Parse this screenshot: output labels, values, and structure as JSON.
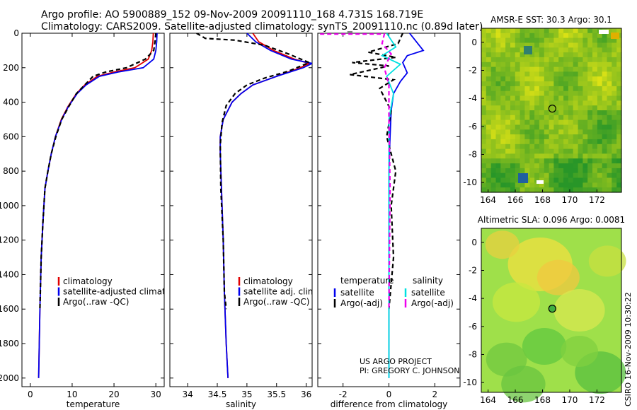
{
  "header": {
    "line1": "Argo profile: AO 5900889_152 09-Nov-2009 20091110_168 4.731S 168.719E",
    "line2": "Climatology: CARS2009. Satellite-adjusted climatology: synTS_20091110.nc (0.89d later)"
  },
  "credit": {
    "line1": "US ARGO PROJECT",
    "line2": "PI: GREGORY C. JOHNSON"
  },
  "stamp": "CSIRO 16-Nov-2009 10:30:22",
  "colors": {
    "climatology": "#e00000",
    "satellite": "#0000ee",
    "argo": "#000000",
    "salinity_sat": "#00e0e0",
    "salinity_argo": "#ee00ee"
  },
  "chart_data": [
    {
      "id": "temperature",
      "type": "line",
      "xlabel": "temperature",
      "ylabel": "",
      "xlim": [
        -2,
        32
      ],
      "ylim": [
        2050,
        0
      ],
      "xticks": [
        "0",
        "10",
        "20",
        "30"
      ],
      "yticks": [
        "0",
        "200",
        "400",
        "600",
        "800",
        "1000",
        "1200",
        "1400",
        "1600",
        "1800",
        "2000"
      ],
      "legend": [
        "climatology",
        "satellite-adjusted climatology",
        "Argo(..raw -QC)"
      ],
      "series": [
        {
          "name": "climatology",
          "color": "#e00000",
          "dash": "",
          "x": [
            29.4,
            29.3,
            29.0,
            28.2,
            25.0,
            20.0,
            16.0,
            13.0,
            11.0,
            9.0,
            7.4,
            6.0,
            5.0,
            4.2,
            3.5,
            3.0,
            2.6,
            2.3,
            2.0
          ],
          "y": [
            0,
            50,
            100,
            150,
            200,
            225,
            250,
            300,
            350,
            425,
            500,
            600,
            700,
            800,
            900,
            1100,
            1300,
            1600,
            2000
          ]
        },
        {
          "name": "satellite-adjusted climatology",
          "color": "#0000ee",
          "dash": "",
          "x": [
            30.3,
            30.2,
            30.0,
            29.5,
            27.0,
            21.0,
            16.5,
            13.3,
            11.2,
            9.1,
            7.5,
            6.0,
            5.0,
            4.2,
            3.5,
            3.0,
            2.6,
            2.3,
            2.0
          ],
          "y": [
            0,
            50,
            100,
            150,
            200,
            225,
            250,
            300,
            350,
            425,
            500,
            600,
            700,
            800,
            900,
            1100,
            1300,
            1600,
            2000
          ]
        },
        {
          "name": "Argo(..raw -QC)",
          "color": "#000000",
          "dash": "6,4",
          "x": [
            30.0,
            29.8,
            29.5,
            27.5,
            23.0,
            18.0,
            15.0,
            13.0,
            11.0,
            9.2,
            7.5,
            6.1,
            5.0,
            4.2,
            3.5,
            3.0,
            2.6,
            2.3
          ],
          "y": [
            0,
            50,
            100,
            150,
            200,
            225,
            250,
            300,
            350,
            425,
            500,
            600,
            700,
            800,
            900,
            1100,
            1300,
            1600
          ]
        }
      ]
    },
    {
      "id": "salinity",
      "type": "line",
      "xlabel": "salinity",
      "xlim": [
        33.7,
        36.1
      ],
      "ylim": [
        2050,
        0
      ],
      "xticks": [
        "34",
        "34.5",
        "35",
        "35.5",
        "36"
      ],
      "legend": [
        "climatology",
        "satellite adj. clim.",
        "Argo(..raw -QC)"
      ],
      "series": [
        {
          "name": "climatology",
          "color": "#e00000",
          "dash": "",
          "x": [
            35.1,
            35.2,
            35.45,
            35.8,
            36.05,
            35.9,
            35.5,
            35.1,
            34.9,
            34.75,
            34.6,
            34.55,
            34.55,
            34.57,
            34.6,
            34.62,
            34.65,
            34.68
          ],
          "y": [
            0,
            50,
            100,
            150,
            175,
            200,
            250,
            300,
            350,
            400,
            500,
            600,
            700,
            900,
            1200,
            1500,
            1800,
            2000
          ]
        },
        {
          "name": "satellite adj. clim.",
          "color": "#0000ee",
          "dash": "",
          "x": [
            35.0,
            35.15,
            35.4,
            35.75,
            36.1,
            35.95,
            35.5,
            35.1,
            34.9,
            34.75,
            34.6,
            34.55,
            34.55,
            34.57,
            34.6,
            34.62,
            34.65,
            34.68
          ],
          "y": [
            0,
            50,
            100,
            150,
            175,
            200,
            250,
            300,
            350,
            400,
            500,
            600,
            700,
            900,
            1200,
            1500,
            1800,
            2000
          ]
        },
        {
          "name": "Argo(..raw -QC)",
          "color": "#000000",
          "dash": "6,4",
          "x": [
            34.15,
            34.3,
            34.8,
            35.3,
            35.7,
            36.05,
            35.7,
            35.3,
            35.0,
            34.8,
            34.65,
            34.58,
            34.55,
            34.56,
            34.6,
            34.62,
            34.65
          ],
          "y": [
            0,
            30,
            40,
            70,
            120,
            170,
            220,
            260,
            300,
            350,
            420,
            520,
            650,
            900,
            1200,
            1500,
            1600
          ]
        }
      ]
    },
    {
      "id": "difference",
      "type": "line",
      "xlabel": "difference from climatology",
      "xlim": [
        -3.1,
        3.1
      ],
      "ylim": [
        2050,
        0
      ],
      "xticks": [
        "-2",
        "0",
        "2"
      ],
      "legend_headers": [
        "temperature",
        "salinity"
      ],
      "legend": [
        "satellite",
        "Argo(-adj)",
        "satellite",
        "Argo(-adj)"
      ],
      "series": [
        {
          "name": "temperature satellite",
          "color": "#0000ee",
          "dash": "",
          "x": [
            0.9,
            1.5,
            0.8,
            0.6,
            0.8,
            0.5,
            0.2,
            0.1,
            0.05,
            0.0,
            0.0,
            0.0,
            0.0
          ],
          "y": [
            0,
            100,
            130,
            170,
            230,
            280,
            350,
            450,
            600,
            800,
            1200,
            1600,
            2000
          ]
        },
        {
          "name": "temperature Argo(-adj)",
          "color": "#000000",
          "dash": "6,4",
          "x": [
            0.6,
            0.4,
            -0.9,
            0.3,
            -1.6,
            0.0,
            -1.7,
            0.2,
            -0.4,
            0.1,
            -0.1,
            0.3,
            0.1,
            0.2,
            0.0
          ],
          "y": [
            0,
            60,
            110,
            140,
            170,
            190,
            240,
            270,
            320,
            450,
            600,
            800,
            1000,
            1300,
            1600
          ]
        },
        {
          "name": "salinity satellite",
          "color": "#00e0e0",
          "dash": "",
          "x": [
            -0.1,
            0.3,
            -0.3,
            0.5,
            -0.1,
            0.2,
            0.0,
            0.0,
            0.0,
            0.0
          ],
          "y": [
            0,
            80,
            130,
            180,
            250,
            350,
            500,
            800,
            1200,
            2000
          ]
        },
        {
          "name": "salinity Argo(-adj)",
          "color": "#ee00ee",
          "dash": "6,4",
          "x": [
            -3.0,
            -0.2,
            -0.3,
            0.1,
            -0.2,
            0.0,
            0.0,
            0.05,
            0.0
          ],
          "y": [
            5,
            5,
            60,
            120,
            200,
            300,
            500,
            900,
            1600
          ]
        }
      ]
    },
    {
      "id": "sst-map",
      "type": "heatmap",
      "title": "AMSR-E SST: 30.3 Argo: 30.1",
      "xlim": [
        163.5,
        173.8
      ],
      "ylim": [
        -10.7,
        1.0
      ],
      "xticks": [
        "164",
        "166",
        "168",
        "170",
        "172"
      ],
      "yticks": [
        "0",
        "-2",
        "-4",
        "-6",
        "-8",
        "-10"
      ],
      "marker": {
        "lon": 168.719,
        "lat": -4.731
      }
    },
    {
      "id": "sla-map",
      "type": "heatmap",
      "title": "Altimetric SLA: 0.096 Argo: 0.0081",
      "xlim": [
        163.5,
        173.8
      ],
      "ylim": [
        -10.7,
        1.0
      ],
      "xticks": [
        "164",
        "166",
        "168",
        "170",
        "172"
      ],
      "yticks": [
        "0",
        "-2",
        "-4",
        "-6",
        "-8",
        "-10"
      ],
      "marker": {
        "lon": 168.719,
        "lat": -4.731
      }
    }
  ]
}
